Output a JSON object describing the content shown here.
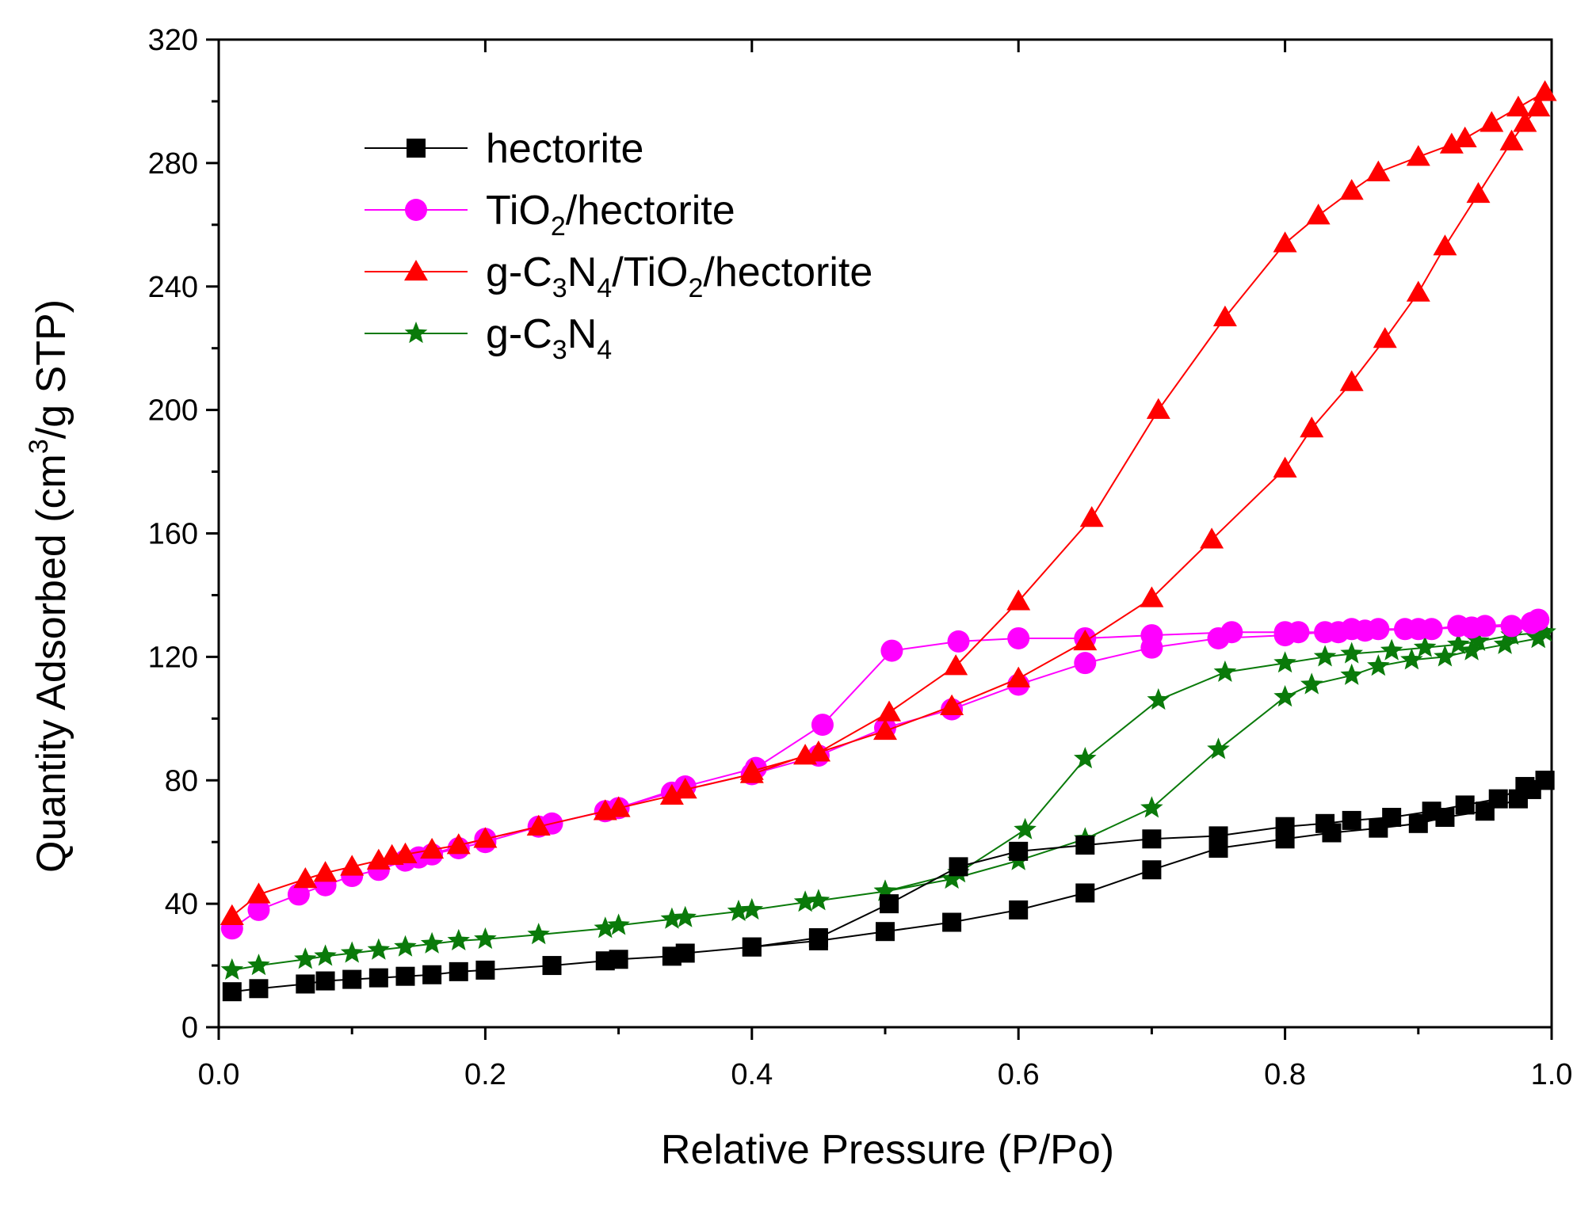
{
  "chart_data": {
    "type": "line",
    "title": "",
    "xlabel": "Relative Pressure (P/Po)",
    "ylabel": {
      "pre": "Quantity Adsorbed (cm",
      "sup": "3",
      "post": "/g STP)"
    },
    "xlim": [
      0.0,
      1.0
    ],
    "ylim": [
      0,
      320
    ],
    "xticks": [
      "0.0",
      "0.2",
      "0.4",
      "0.6",
      "0.8",
      "1.0"
    ],
    "yticks": [
      "0",
      "40",
      "80",
      "120",
      "160",
      "200",
      "240",
      "280",
      "320"
    ],
    "legend_position": "top-left",
    "series": [
      {
        "name": "hectorite",
        "legend_parts": [
          {
            "t": "hectorite"
          }
        ],
        "color": "#000000",
        "marker": "square",
        "adsorption": [
          [
            0.01,
            11.5
          ],
          [
            0.03,
            12.5
          ],
          [
            0.065,
            14
          ],
          [
            0.08,
            15
          ],
          [
            0.1,
            15.5
          ],
          [
            0.12,
            16
          ],
          [
            0.14,
            16.5
          ],
          [
            0.16,
            17
          ],
          [
            0.18,
            18
          ],
          [
            0.2,
            18.5
          ],
          [
            0.25,
            20
          ],
          [
            0.29,
            21.5
          ],
          [
            0.3,
            22
          ],
          [
            0.34,
            23
          ],
          [
            0.35,
            24
          ],
          [
            0.4,
            26
          ],
          [
            0.45,
            28
          ],
          [
            0.5,
            31
          ],
          [
            0.55,
            34
          ],
          [
            0.6,
            38
          ],
          [
            0.65,
            43.5
          ],
          [
            0.7,
            51
          ],
          [
            0.75,
            58
          ],
          [
            0.8,
            61
          ],
          [
            0.835,
            63
          ],
          [
            0.87,
            64.5
          ],
          [
            0.9,
            66
          ],
          [
            0.92,
            68
          ],
          [
            0.95,
            70
          ],
          [
            0.975,
            74
          ],
          [
            0.985,
            77
          ],
          [
            0.995,
            80
          ]
        ],
        "desorption": [
          [
            0.995,
            80
          ],
          [
            0.98,
            78
          ],
          [
            0.96,
            74
          ],
          [
            0.935,
            72
          ],
          [
            0.91,
            70
          ],
          [
            0.88,
            68
          ],
          [
            0.85,
            67
          ],
          [
            0.83,
            66
          ],
          [
            0.8,
            65
          ],
          [
            0.75,
            62
          ],
          [
            0.7,
            61
          ],
          [
            0.65,
            59
          ],
          [
            0.6,
            57
          ],
          [
            0.555,
            52
          ],
          [
            0.503,
            40
          ],
          [
            0.45,
            29
          ],
          [
            0.4,
            26
          ]
        ]
      },
      {
        "name": "TiO2/hectorite",
        "legend_parts": [
          {
            "t": "TiO"
          },
          {
            "t": "2",
            "sub": true
          },
          {
            "t": "/hectorite"
          }
        ],
        "color": "#FF00FF",
        "marker": "circle",
        "adsorption": [
          [
            0.01,
            32
          ],
          [
            0.03,
            38
          ],
          [
            0.06,
            43
          ],
          [
            0.08,
            46
          ],
          [
            0.1,
            49
          ],
          [
            0.12,
            51
          ],
          [
            0.14,
            54
          ],
          [
            0.16,
            56
          ],
          [
            0.18,
            58
          ],
          [
            0.2,
            60
          ],
          [
            0.24,
            65
          ],
          [
            0.29,
            70
          ],
          [
            0.34,
            76
          ],
          [
            0.4,
            82
          ],
          [
            0.45,
            88
          ],
          [
            0.5,
            97
          ],
          [
            0.55,
            103
          ],
          [
            0.6,
            111
          ],
          [
            0.65,
            118
          ],
          [
            0.7,
            123
          ],
          [
            0.75,
            126
          ],
          [
            0.8,
            127
          ],
          [
            0.83,
            128
          ],
          [
            0.86,
            128.5
          ],
          [
            0.9,
            129
          ],
          [
            0.94,
            129.5
          ],
          [
            0.97,
            130
          ],
          [
            0.99,
            132
          ]
        ],
        "desorption": [
          [
            0.99,
            132
          ],
          [
            0.985,
            131
          ],
          [
            0.95,
            130
          ],
          [
            0.93,
            130
          ],
          [
            0.91,
            129
          ],
          [
            0.89,
            129
          ],
          [
            0.87,
            129
          ],
          [
            0.85,
            129
          ],
          [
            0.84,
            128
          ],
          [
            0.81,
            128
          ],
          [
            0.8,
            128
          ],
          [
            0.76,
            128
          ],
          [
            0.7,
            127
          ],
          [
            0.65,
            126
          ],
          [
            0.6,
            126
          ],
          [
            0.555,
            125
          ],
          [
            0.505,
            122
          ],
          [
            0.453,
            98
          ],
          [
            0.403,
            84
          ],
          [
            0.35,
            78
          ],
          [
            0.3,
            71
          ],
          [
            0.25,
            66
          ],
          [
            0.2,
            61
          ],
          [
            0.15,
            55
          ]
        ]
      },
      {
        "name": "g-C3N4/TiO2/hectorite",
        "legend_parts": [
          {
            "t": "g-C"
          },
          {
            "t": "3",
            "sub": true
          },
          {
            "t": "N"
          },
          {
            "t": "4",
            "sub": true
          },
          {
            "t": "/TiO"
          },
          {
            "t": "2",
            "sub": true
          },
          {
            "t": "/hectorite"
          }
        ],
        "color": "#FF0000",
        "marker": "triangle",
        "adsorption": [
          [
            0.01,
            36
          ],
          [
            0.03,
            43
          ],
          [
            0.065,
            48
          ],
          [
            0.08,
            50
          ],
          [
            0.1,
            52
          ],
          [
            0.12,
            54
          ],
          [
            0.13,
            55.5
          ],
          [
            0.14,
            56
          ],
          [
            0.16,
            57.5
          ],
          [
            0.18,
            59
          ],
          [
            0.2,
            61
          ],
          [
            0.24,
            65
          ],
          [
            0.29,
            70
          ],
          [
            0.3,
            71
          ],
          [
            0.34,
            75
          ],
          [
            0.35,
            77
          ],
          [
            0.4,
            82
          ],
          [
            0.44,
            88
          ],
          [
            0.45,
            89
          ],
          [
            0.5,
            96
          ],
          [
            0.55,
            104
          ],
          [
            0.6,
            113
          ],
          [
            0.65,
            125
          ],
          [
            0.7,
            139
          ],
          [
            0.745,
            158
          ],
          [
            0.8,
            181
          ],
          [
            0.82,
            194
          ],
          [
            0.85,
            209
          ],
          [
            0.875,
            223
          ],
          [
            0.9,
            238
          ],
          [
            0.92,
            253
          ],
          [
            0.945,
            270
          ],
          [
            0.97,
            287
          ],
          [
            0.98,
            293
          ],
          [
            0.99,
            298
          ]
        ],
        "desorption": [
          [
            0.99,
            298
          ],
          [
            0.995,
            303
          ],
          [
            0.975,
            298
          ],
          [
            0.955,
            293
          ],
          [
            0.935,
            288
          ],
          [
            0.925,
            286
          ],
          [
            0.9,
            282
          ],
          [
            0.87,
            277
          ],
          [
            0.85,
            271
          ],
          [
            0.825,
            263
          ],
          [
            0.8,
            254
          ],
          [
            0.755,
            230
          ],
          [
            0.705,
            200
          ],
          [
            0.655,
            165
          ],
          [
            0.6,
            138
          ],
          [
            0.553,
            117
          ],
          [
            0.503,
            102
          ],
          [
            0.45,
            89
          ],
          [
            0.4,
            83
          ]
        ]
      },
      {
        "name": "g-C3N4",
        "legend_parts": [
          {
            "t": "g-C"
          },
          {
            "t": "3",
            "sub": true
          },
          {
            "t": "N"
          },
          {
            "t": "4",
            "sub": true
          }
        ],
        "color": "#0A7A0A",
        "marker": "star",
        "adsorption": [
          [
            0.01,
            18.5
          ],
          [
            0.03,
            20
          ],
          [
            0.065,
            22
          ],
          [
            0.08,
            23
          ],
          [
            0.1,
            24
          ],
          [
            0.12,
            25
          ],
          [
            0.14,
            26
          ],
          [
            0.16,
            27
          ],
          [
            0.18,
            28
          ],
          [
            0.2,
            28.5
          ],
          [
            0.24,
            30
          ],
          [
            0.29,
            32
          ],
          [
            0.3,
            33
          ],
          [
            0.34,
            35
          ],
          [
            0.35,
            35.5
          ],
          [
            0.39,
            37.5
          ],
          [
            0.4,
            38
          ],
          [
            0.44,
            40.5
          ],
          [
            0.45,
            41
          ],
          [
            0.5,
            44
          ],
          [
            0.55,
            48
          ],
          [
            0.6,
            54
          ],
          [
            0.65,
            61
          ],
          [
            0.7,
            71
          ],
          [
            0.75,
            90
          ],
          [
            0.8,
            107
          ],
          [
            0.82,
            111
          ],
          [
            0.85,
            114
          ],
          [
            0.87,
            117
          ],
          [
            0.895,
            119
          ],
          [
            0.92,
            120
          ],
          [
            0.94,
            122
          ],
          [
            0.965,
            124
          ],
          [
            0.99,
            126
          ]
        ],
        "desorption": [
          [
            0.99,
            126
          ],
          [
            0.995,
            128
          ],
          [
            0.97,
            127
          ],
          [
            0.945,
            125
          ],
          [
            0.93,
            124
          ],
          [
            0.905,
            123
          ],
          [
            0.88,
            122
          ],
          [
            0.85,
            121
          ],
          [
            0.83,
            120
          ],
          [
            0.8,
            118
          ],
          [
            0.755,
            115
          ],
          [
            0.705,
            106
          ],
          [
            0.65,
            87
          ],
          [
            0.605,
            64
          ],
          [
            0.555,
            50
          ],
          [
            0.5,
            44
          ]
        ]
      }
    ]
  }
}
